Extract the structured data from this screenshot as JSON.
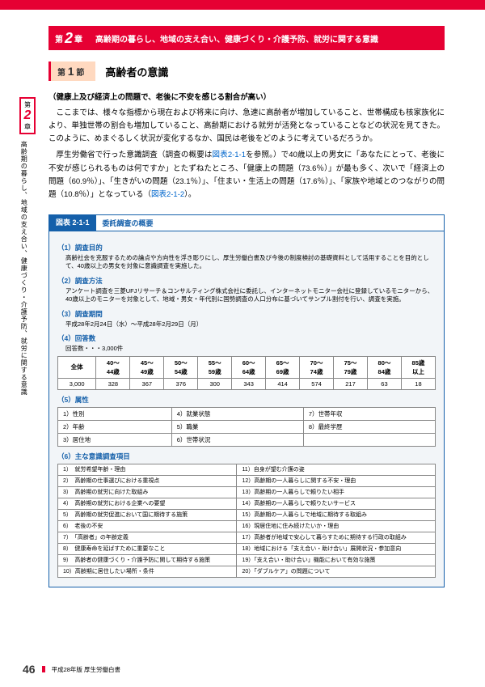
{
  "chapter": {
    "pre": "第",
    "num": "2",
    "post": "章",
    "title": "高齢期の暮らし、地域の支え合い、健康づくり・介護予防、就労に関する意識"
  },
  "section": {
    "pre": "第",
    "num": "1",
    "post": "節",
    "title": "高齢者の意識"
  },
  "sidetab": {
    "pre": "第",
    "num": "2",
    "post": "章",
    "text": "高齢期の暮らし、地域の支え合い、健康づくり・介護予防、就労に関する意識"
  },
  "heading": "（健康上及び経済上の問題で、老後に不安を感じる割合が高い）",
  "para1": "ここまでは、様々な指標から現在および将来に向け、急速に高齢者が増加していること、世帯構成も核家族化により、単独世帯の割合も増加していること、高齢期における就労が活発となっていることなどの状況を見てきた。このように、めまぐるしく状況が変化するなか、国民は老後をどのように考えているだろうか。",
  "para2a": "厚生労働省で行った意識調査（調査の概要は",
  "link1": "図表2-1-1",
  "para2b": "を参照。）で40歳以上の男女に「あなたにとって、老後に不安が感じられるものは何ですか」とたずねたところ、「健康上の問題（73.6％）」が最も多く、次いで「経済上の問題（60.9％）」、「生きがいの問題（23.1％）」、「住まい・生活上の問題（17.6％）」、「家族や地域とのつながりの問題（10.8％）」となっている（",
  "link2": "図表2-1-2",
  "para2c": "）。",
  "figure": {
    "label": "図表 2-1-1",
    "title": "委託調査の概要",
    "s1": "（1）調査目的",
    "s1d": "高齢社会を克服するための論点や方向性を浮き彫りにし、厚生労働白書及び今後の制度検討の基礎資料として活用することを目的として、40歳以上の男女を対象に意識調査を実施した。",
    "s2": "（2）調査方法",
    "s2d": "アンケート調査を三菱UFJリサーチ＆コンサルティング株式会社に委託し、インターネットモニター会社に登録しているモニターから、40歳以上のモニターを対象として、地域・男女・年代別に国勢調査の人口分布に基づいてサンプル割付を行い、調査を実施。",
    "s3": "（3）調査期間",
    "s3d": "平成28年2月24日（水）～平成28年2月29日（月）",
    "s4": "（4）回答数",
    "s4d": "回答数・・・3,000件",
    "tableHeaders": [
      "全体",
      "40～\n44歳",
      "45～\n49歳",
      "50～\n54歳",
      "55～\n59歳",
      "60～\n64歳",
      "65～\n69歳",
      "70～\n74歳",
      "75～\n79歳",
      "80～\n84歳",
      "85歳\n以上"
    ],
    "tableRow": [
      "3,000",
      "328",
      "367",
      "376",
      "300",
      "343",
      "414",
      "574",
      "217",
      "63",
      "18"
    ],
    "s5": "（5）属性",
    "attrs": [
      [
        "1）性別",
        "4）就業状態",
        "7）世帯年収"
      ],
      [
        "2）年齢",
        "5）職業",
        "8）最終学歴"
      ],
      [
        "3）居住地",
        "6）世帯状況",
        ""
      ]
    ],
    "s6": "（6）主な意識調査項目",
    "items": [
      [
        "1）　就労希望年齢・理由",
        "11）自身が望む介護の姿"
      ],
      [
        "2）　高齢期の仕事選びにおける重視点",
        "12）高齢期の一人暮らしに関する不安・理由"
      ],
      [
        "3）　高齢期の就労に向けた取組み",
        "13）高齢期の一人暮らしで頼りたい相手"
      ],
      [
        "4）　高齢期の就労における企業への要望",
        "14）高齢期の一人暮らしで頼りたいサービス"
      ],
      [
        "5）　高齢期の就労促進において国に期待する施策",
        "15）高齢期の一人暮らしで地域に期待する取組み"
      ],
      [
        "6）　老後の不安",
        "16）現居住地に住み続けたいか・理由"
      ],
      [
        "7）　「高齢者」の年齢定義",
        "17）高齢者が地域で安心して暮らすために期待する行政の取組み"
      ],
      [
        "8）　健康寿命を延ばすために重要なこと",
        "18）地域における「支え合い・助け合い」展開状況・参加意向"
      ],
      [
        "9）　高齢者の健康づくり・介護予防に関して期待する施策",
        "19）「支え合い・助け合い」機能において有効な施策"
      ],
      [
        "10）高齢期に居住したい場所・条件",
        "20）「ダブルケア」の問題について"
      ]
    ]
  },
  "footer": {
    "pageNum": "46",
    "text": "平成28年版 厚生労働白書"
  }
}
